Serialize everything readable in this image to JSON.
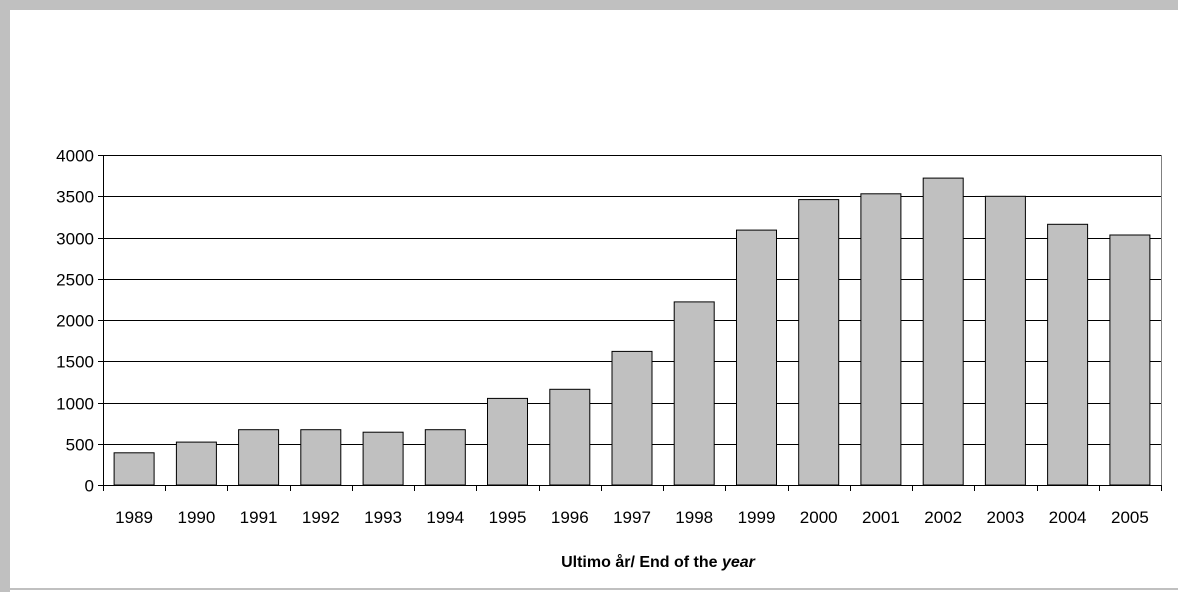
{
  "colors": {
    "frame": "#c0c0c0",
    "bar_fill": "#c0c0c0",
    "bar_stroke": "#000000",
    "grid": "#000000",
    "background": "#ffffff"
  },
  "chart_data": {
    "type": "bar",
    "title": "",
    "xlabel_parts": [
      "Ultimo år/  End of the ",
      "year"
    ],
    "ylabel": "",
    "categories": [
      "1989",
      "1990",
      "1991",
      "1992",
      "1993",
      "1994",
      "1995",
      "1996",
      "1997",
      "1998",
      "1999",
      "2000",
      "2001",
      "2002",
      "2003",
      "2004",
      "2005"
    ],
    "values": [
      390,
      520,
      670,
      670,
      640,
      670,
      1050,
      1160,
      1620,
      2220,
      3090,
      3460,
      3530,
      3720,
      3500,
      3160,
      3030
    ],
    "ylim": [
      0,
      4000
    ],
    "yticks": [
      0,
      500,
      1000,
      1500,
      2000,
      2500,
      3000,
      3500,
      4000
    ],
    "grid": true,
    "legend": "none"
  }
}
